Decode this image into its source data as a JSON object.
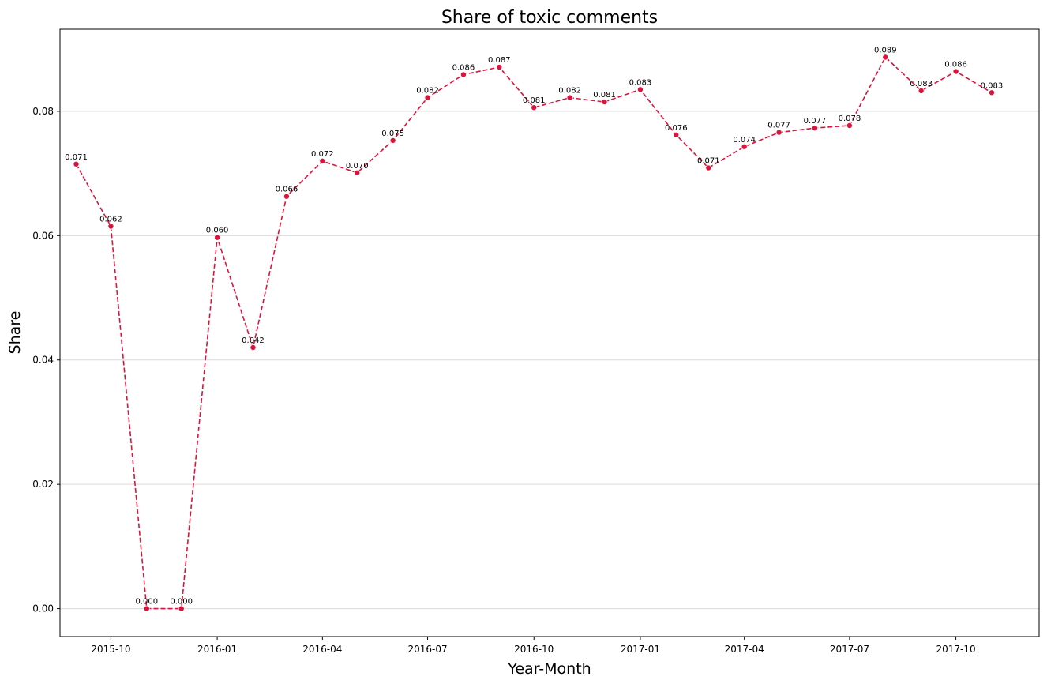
{
  "chart_data": {
    "type": "line",
    "title": "Share of toxic comments",
    "xlabel": "Year-Month",
    "ylabel": "Share",
    "x_ticks": [
      "2015-10",
      "2016-01",
      "2016-04",
      "2016-07",
      "2016-10",
      "2017-01",
      "2017-04",
      "2017-07",
      "2017-10"
    ],
    "y_ticks": [
      "0.00",
      "0.02",
      "0.04",
      "0.06",
      "0.08"
    ],
    "ylim": [
      -0.0045,
      0.0932
    ],
    "xlim": [
      "2015-08-18",
      "2017-12-12"
    ],
    "grid": "horizontal",
    "line_style": "dashed",
    "color": "#dc143c",
    "series": [
      {
        "x": [
          "2015-09-01",
          "2015-10-01",
          "2015-11-01",
          "2015-12-01",
          "2016-01-01",
          "2016-02-01",
          "2016-03-01",
          "2016-04-01",
          "2016-05-01",
          "2016-06-01",
          "2016-07-01",
          "2016-08-01",
          "2016-09-01",
          "2016-10-01",
          "2016-11-01",
          "2016-12-01",
          "2017-01-01",
          "2017-02-01",
          "2017-03-01",
          "2017-04-01",
          "2017-05-01",
          "2017-06-01",
          "2017-07-01",
          "2017-08-01",
          "2017-09-01",
          "2017-10-01",
          "2017-11-01"
        ],
        "values": [
          0.0715,
          0.0615,
          0.0,
          0.0,
          0.0597,
          0.042,
          0.0663,
          0.072,
          0.0701,
          0.0753,
          0.0822,
          0.0859,
          0.0871,
          0.0806,
          0.0822,
          0.0815,
          0.0835,
          0.0762,
          0.0709,
          0.0743,
          0.0766,
          0.0773,
          0.0777,
          0.0887,
          0.0833,
          0.0864,
          0.083
        ],
        "labels": [
          "0.071",
          "0.062",
          "0.000",
          "0.000",
          "0.060",
          "0.042",
          "0.066",
          "0.072",
          "0.070",
          "0.075",
          "0.082",
          "0.086",
          "0.087",
          "0.081",
          "0.082",
          "0.081",
          "0.083",
          "0.076",
          "0.071",
          "0.074",
          "0.077",
          "0.077",
          "0.078",
          "0.089",
          "0.083",
          "0.086",
          "0.083"
        ]
      }
    ]
  }
}
